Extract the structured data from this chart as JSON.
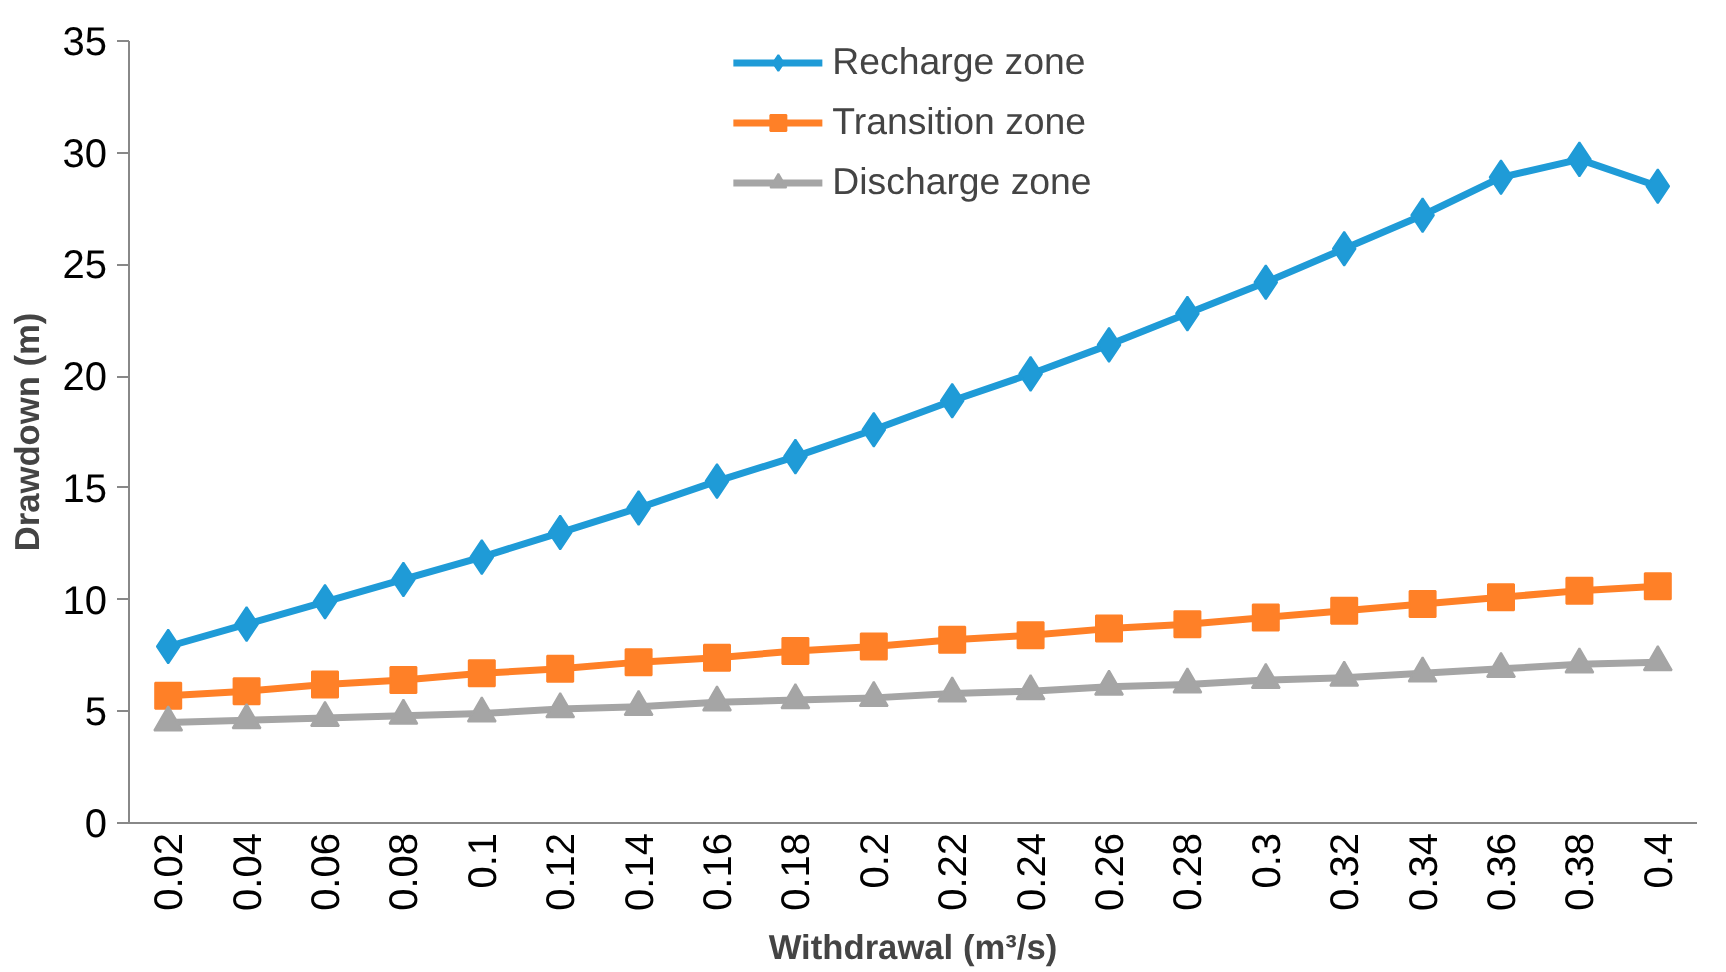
{
  "chart_data": {
    "type": "line",
    "xlabel": "Withdrawal (m³/s)",
    "ylabel": "Drawdown (m)",
    "categories": [
      "0.02",
      "0.04",
      "0.06",
      "0.08",
      "0.1",
      "0.12",
      "0.14",
      "0.16",
      "0.18",
      "0.2",
      "0.22",
      "0.24",
      "0.26",
      "0.28",
      "0.3",
      "0.32",
      "0.34",
      "0.36",
      "0.38",
      "0.4"
    ],
    "series": [
      {
        "name": "Recharge zone",
        "color": "#1f9bd7",
        "marker": "diamond",
        "values": [
          7.9,
          8.9,
          9.9,
          10.9,
          11.9,
          13.0,
          14.1,
          15.3,
          16.4,
          17.6,
          18.9,
          20.1,
          21.4,
          22.8,
          24.2,
          25.7,
          27.2,
          28.9,
          29.7,
          28.5
        ]
      },
      {
        "name": "Transition zone",
        "color": "#ff8027",
        "marker": "square",
        "values": [
          5.7,
          5.9,
          6.2,
          6.4,
          6.7,
          6.9,
          7.2,
          7.4,
          7.7,
          7.9,
          8.2,
          8.4,
          8.7,
          8.9,
          9.2,
          9.5,
          9.8,
          10.1,
          10.4,
          10.6
        ]
      },
      {
        "name": "Discharge zone",
        "color": "#a5a5a5",
        "marker": "triangle",
        "values": [
          4.5,
          4.6,
          4.7,
          4.8,
          4.9,
          5.1,
          5.2,
          5.4,
          5.5,
          5.6,
          5.8,
          5.9,
          6.1,
          6.2,
          6.4,
          6.5,
          6.7,
          6.9,
          7.1,
          7.2
        ]
      }
    ],
    "ylim": [
      0,
      35
    ],
    "yticks": [
      0,
      5,
      10,
      15,
      20,
      25,
      30,
      35
    ],
    "grid": false,
    "legend": "top"
  }
}
